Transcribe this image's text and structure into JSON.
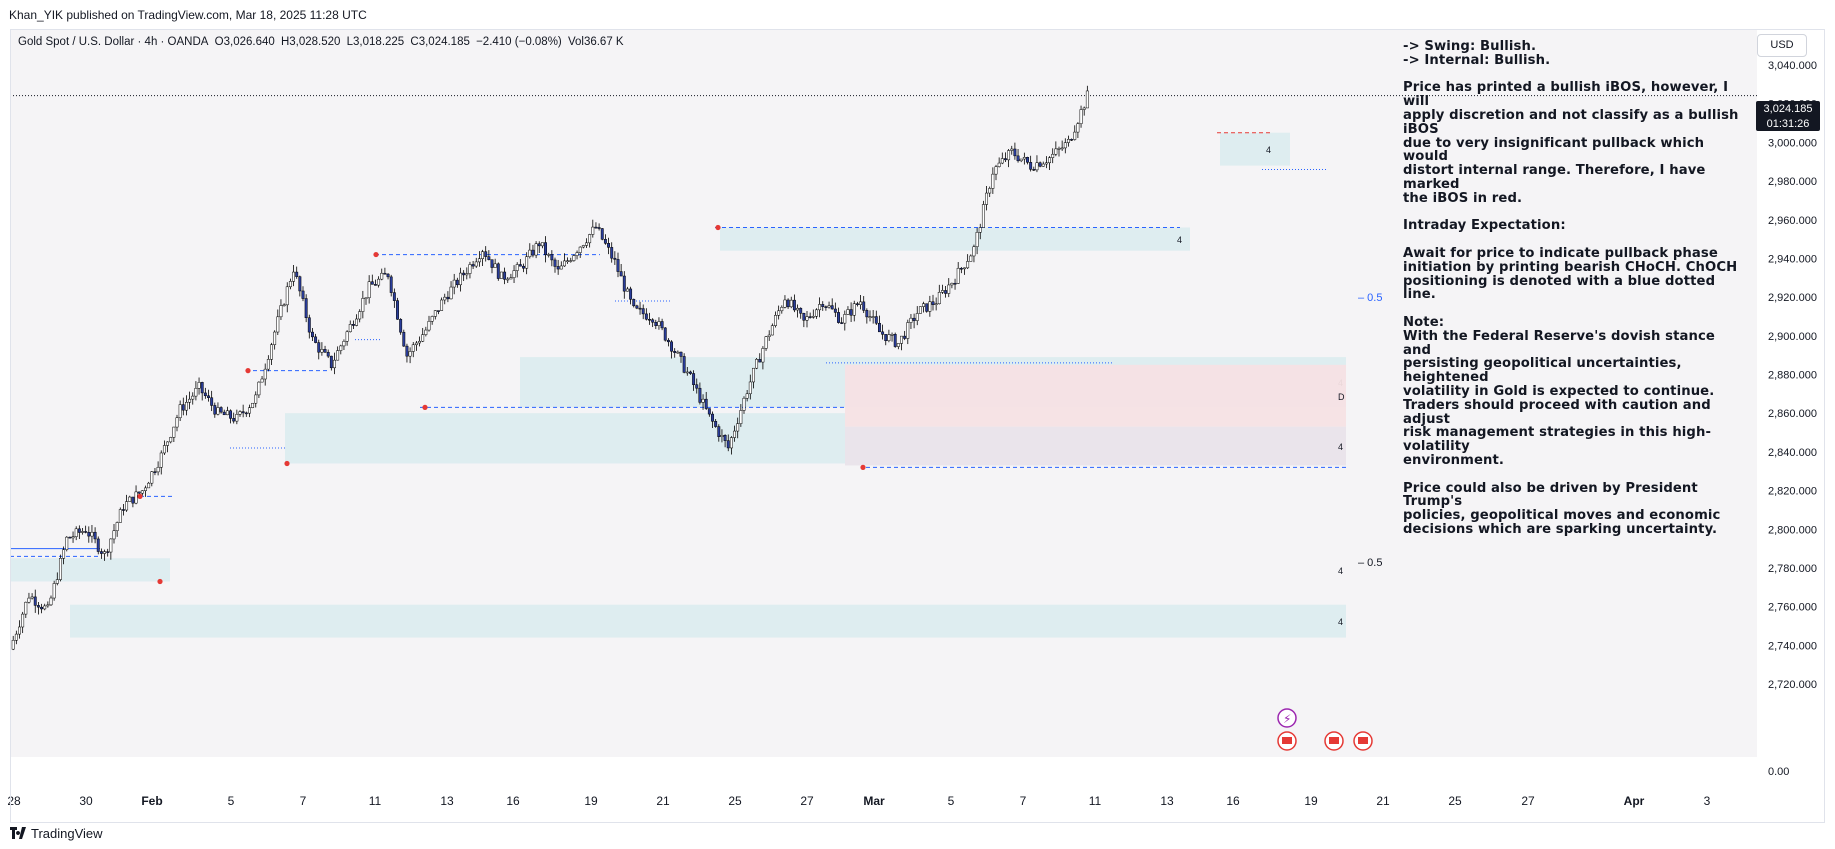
{
  "header": {
    "published": "Khan_YIK published on TradingView.com, Mar 18, 2025 11:28 UTC"
  },
  "symbol": {
    "name": "Gold Spot / U.S. Dollar · 4h · OANDA",
    "open": "O3,026.640",
    "high": "H3,028.520",
    "low": "L3,018.225",
    "close": "C3,024.185",
    "change": "−2.410 (−0.08%)",
    "volume": "Vol36.67 K"
  },
  "currency_button": "USD",
  "last_price": {
    "value": "3,024.185",
    "countdown": "01:31:26"
  },
  "footer": {
    "brand": "TradingView"
  },
  "annotation_lines": [
    "-> Swing:  Bullish.\n-> Internal:  Bullish.",
    "Price has printed a bullish iBOS, however, I will\napply discretion and not classify as a bullish iBOS\ndue to very insignificant pullback which would\ndistort internal range.  Therefore, I have marked\nthe iBOS in red.",
    "Intraday Expectation:",
    "Await for price to indicate pullback phase\ninitiation by printing bearish CHoCH.  ChOCH\npositioning is denoted with a blue dotted line.",
    "Note:\nWith the Federal Reserve's dovish stance and\npersisting geopolitical uncertainties, heightened\nvolatility in Gold is expected to continue.\nTraders should proceed with caution and adjust\nrisk management strategies in this high-volatility\nenvironment.",
    "Price could also be driven by President Trump's\npolicies, geopolitical moves and economic\ndecisions which are sparking uncertainty."
  ],
  "colors": {
    "up": "#ffffff",
    "down": "#2a3d9a",
    "zone_blue": "#dcecef",
    "zone_red": "#f6e2e4",
    "zone_mix": "#e9e3ea",
    "bos_blue": "#2962ff",
    "bos_red": "#e53935",
    "candle_edge": "#000000"
  },
  "chart_data": {
    "type": "candlestick",
    "title": "Gold Spot / U.S. Dollar · 4h · OANDA",
    "y_axis": {
      "ticks": [
        2720,
        2740,
        2760,
        2780,
        2800,
        2820,
        2840,
        2860,
        2880,
        2900,
        2920,
        2940,
        2960,
        2980,
        3000,
        3020,
        3040
      ],
      "tick_labels": [
        "2,720.000",
        "2,740.000",
        "2,760.000",
        "2,780.000",
        "2,800.000",
        "2,820.000",
        "2,840.000",
        "2,860.000",
        "2,880.000",
        "2,900.000",
        "2,920.000",
        "2,940.000",
        "2,960.000",
        "2,980.000",
        "3,000.000",
        "3,020.000",
        "3,040.000"
      ],
      "range": [
        2700,
        3052
      ],
      "bottom_label": "0.00"
    },
    "x_axis": {
      "labels": [
        "28",
        "30",
        "Feb",
        "5",
        "7",
        "11",
        "13",
        "16",
        "19",
        "21",
        "25",
        "27",
        "Mar",
        "5",
        "7",
        "11",
        "13",
        "16",
        "19",
        "21",
        "25",
        "27",
        "Apr",
        "3"
      ],
      "bold": [
        "Feb",
        "Mar",
        "Apr"
      ]
    },
    "ohlc_series": {
      "note": "4h candles, estimated from chart; daily path anchors (date index, price)",
      "anchors": [
        [
          0,
          2738
        ],
        [
          1,
          2766
        ],
        [
          2,
          2758
        ],
        [
          3,
          2795
        ],
        [
          4,
          2800
        ],
        [
          5,
          2787
        ],
        [
          6,
          2812
        ],
        [
          7,
          2820
        ],
        [
          8,
          2838
        ],
        [
          9,
          2862
        ],
        [
          10,
          2873
        ],
        [
          11,
          2860
        ],
        [
          12,
          2857
        ],
        [
          13,
          2868
        ],
        [
          14,
          2902
        ],
        [
          15,
          2935
        ],
        [
          16,
          2898
        ],
        [
          17,
          2885
        ],
        [
          18,
          2905
        ],
        [
          19,
          2925
        ],
        [
          20,
          2932
        ],
        [
          21,
          2890
        ],
        [
          22,
          2903
        ],
        [
          23,
          2920
        ],
        [
          24,
          2932
        ],
        [
          25,
          2945
        ],
        [
          26,
          2930
        ],
        [
          27,
          2935
        ],
        [
          28,
          2948
        ],
        [
          29,
          2933
        ],
        [
          30,
          2945
        ],
        [
          31,
          2956
        ],
        [
          32,
          2938
        ],
        [
          33,
          2913
        ],
        [
          34,
          2910
        ],
        [
          35,
          2895
        ],
        [
          36,
          2878
        ],
        [
          37,
          2858
        ],
        [
          38,
          2842
        ],
        [
          39,
          2872
        ],
        [
          40,
          2898
        ],
        [
          41,
          2920
        ],
        [
          42,
          2907
        ],
        [
          43,
          2918
        ],
        [
          44,
          2908
        ],
        [
          45,
          2918
        ],
        [
          46,
          2902
        ],
        [
          47,
          2896
        ],
        [
          48,
          2912
        ],
        [
          49,
          2918
        ],
        [
          50,
          2930
        ],
        [
          51,
          2945
        ],
        [
          52,
          2985
        ],
        [
          53,
          2995
        ],
        [
          54,
          2988
        ],
        [
          55,
          2992
        ],
        [
          56,
          3000
        ],
        [
          57,
          3024
        ]
      ]
    },
    "swing_points": [
      {
        "label": "high",
        "price": 2817
      },
      {
        "label": "low",
        "price": 2773
      },
      {
        "label": "high",
        "price": 2882
      },
      {
        "label": "low",
        "price": 2834
      },
      {
        "label": "high",
        "price": 2942
      },
      {
        "label": "low",
        "price": 2863
      },
      {
        "label": "high",
        "price": 2956
      },
      {
        "label": "low",
        "price": 2832
      }
    ],
    "levels": [
      {
        "price": 2786,
        "style": "dashed",
        "color": "blue"
      },
      {
        "price": 2790,
        "style": "solid",
        "color": "blue"
      },
      {
        "price": 2817,
        "style": "dashed",
        "color": "blue"
      },
      {
        "price": 2842,
        "style": "dotted",
        "color": "blue"
      },
      {
        "price": 2882,
        "style": "dashed",
        "color": "blue"
      },
      {
        "price": 2863,
        "style": "dashed",
        "color": "blue"
      },
      {
        "price": 2942,
        "style": "dashed",
        "color": "blue"
      },
      {
        "price": 2956,
        "style": "dashed",
        "color": "blue"
      },
      {
        "price": 2832,
        "style": "dashed",
        "color": "blue"
      },
      {
        "price": 2918,
        "style": "dotted",
        "color": "blue"
      },
      {
        "price": 2898,
        "style": "dotted",
        "color": "blue"
      },
      {
        "price": 2886,
        "style": "dotted",
        "color": "blue"
      },
      {
        "price": 3005,
        "style": "dashed",
        "color": "red"
      },
      {
        "price": 2986,
        "style": "dotted",
        "color": "blue"
      },
      {
        "price": 3024.185,
        "style": "dotted",
        "color": "black"
      }
    ],
    "zones": [
      {
        "top": 2785,
        "bottom": 2773,
        "color": "blue",
        "label": "4"
      },
      {
        "top": 2761,
        "bottom": 2744,
        "color": "blue",
        "label": "4"
      },
      {
        "top": 2889,
        "bottom": 2863,
        "color": "blue",
        "label": "4"
      },
      {
        "top": 2860,
        "bottom": 2834,
        "color": "blue",
        "label": ""
      },
      {
        "top": 2885,
        "bottom": 2853,
        "color": "red",
        "label": "D"
      },
      {
        "top": 2853,
        "bottom": 2833,
        "color": "mix",
        "label": "4"
      },
      {
        "top": 2956,
        "bottom": 2944,
        "color": "blue",
        "label": "4"
      },
      {
        "top": 3005,
        "bottom": 2988,
        "color": "blue",
        "label": "4"
      }
    ],
    "fib_labels": [
      {
        "text": "0.5",
        "price": 2920
      },
      {
        "text": "0.5",
        "price": 2783
      }
    ]
  }
}
